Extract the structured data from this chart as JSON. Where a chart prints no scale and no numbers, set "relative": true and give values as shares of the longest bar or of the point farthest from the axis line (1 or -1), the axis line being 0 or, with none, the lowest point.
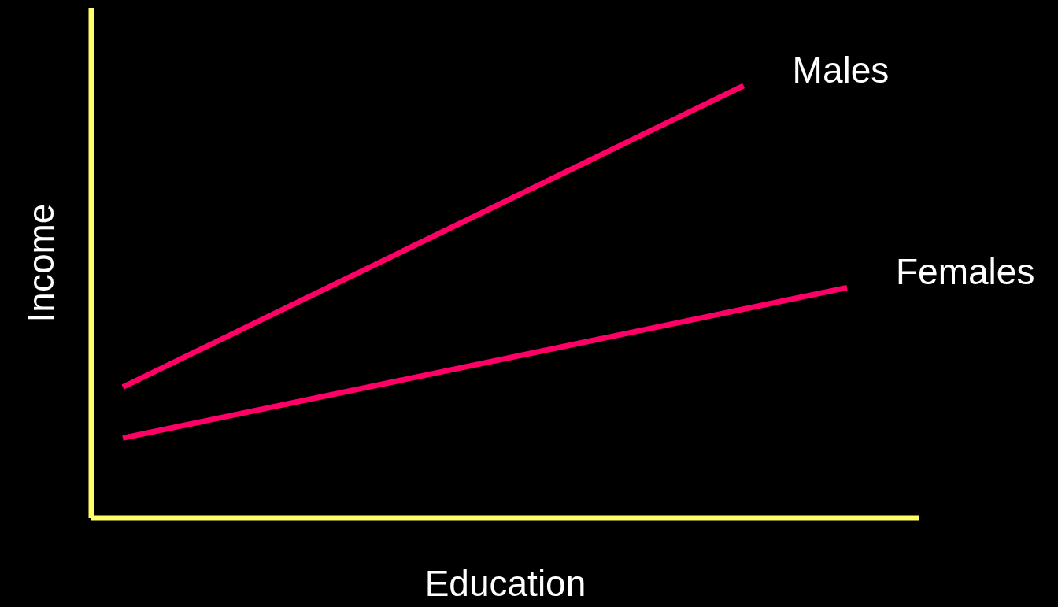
{
  "chart_data": {
    "type": "line",
    "relative": true,
    "xlabel": "Education",
    "ylabel": "Income",
    "categories": [
      null,
      null,
      null,
      null,
      null,
      null,
      null,
      null
    ],
    "series": [
      {
        "name": "Males",
        "color": "#ff0066",
        "values": [
          0.303,
          null,
          null,
          null,
          null,
          null,
          1,
          null
        ]
      },
      {
        "name": "Females",
        "color": "#ff0066",
        "values": [
          0.185,
          null,
          null,
          null,
          null,
          null,
          null,
          0.533
        ]
      }
    ],
    "legend": false,
    "grid": false,
    "marker": "none",
    "line_style": "solid"
  }
}
